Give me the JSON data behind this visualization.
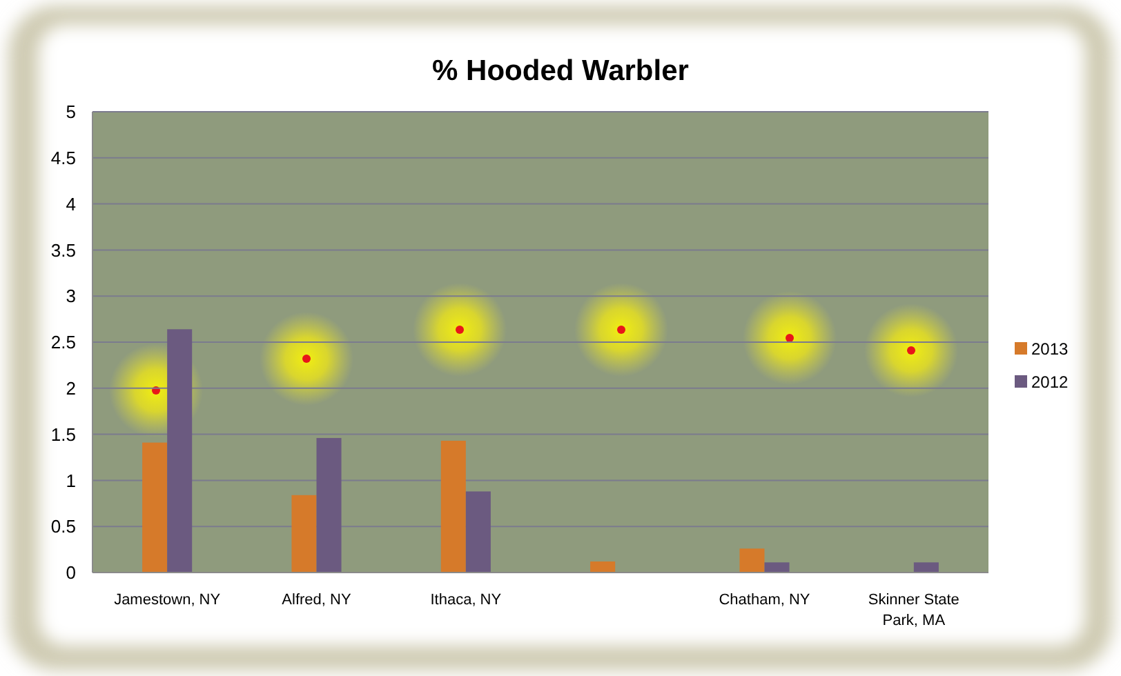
{
  "chart_data": {
    "type": "bar",
    "title": "% Hooded Warbler",
    "categories": [
      "Jamestown, NY",
      "Alfred, NY",
      "Ithaca, NY",
      null,
      "Chatham, NY",
      "Skinner State Park, MA"
    ],
    "series": [
      {
        "name": "2013",
        "color": "#d67a2a",
        "values": [
          1.41,
          0.84,
          1.43,
          0.12,
          0.26,
          null
        ]
      },
      {
        "name": "2012",
        "color": "#6b5a80",
        "values": [
          2.64,
          1.46,
          0.88,
          null,
          0.11,
          0.11
        ]
      }
    ],
    "ylim": [
      0,
      5
    ],
    "yticks": [
      0,
      0.5,
      1,
      1.5,
      2,
      2.5,
      3,
      3.5,
      4,
      4.5,
      5
    ],
    "grid": "y",
    "legend": "right"
  }
}
